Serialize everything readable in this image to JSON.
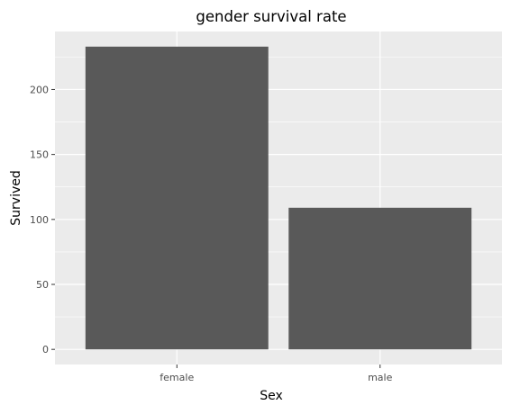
{
  "chart_data": {
    "type": "bar",
    "title": "gender survival rate",
    "xlabel": "Sex",
    "ylabel": "Survived",
    "categories": [
      "female",
      "male"
    ],
    "values": [
      233,
      109
    ],
    "ylim": [
      -11.65,
      244.65
    ],
    "yticks": [
      0,
      50,
      100,
      150,
      200
    ],
    "grid": true,
    "theme": "ggplot-gray",
    "colors": {
      "panel": "#ebebeb",
      "bar": "#595959",
      "grid": "#ffffff"
    }
  }
}
